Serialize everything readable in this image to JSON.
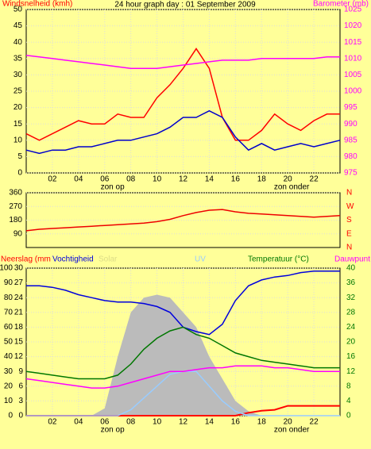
{
  "chart_data": [
    {
      "type": "line",
      "title": "24 hour graph day : 01 September 2009",
      "x": [
        0,
        1,
        2,
        3,
        4,
        5,
        6,
        7,
        8,
        9,
        10,
        11,
        12,
        13,
        14,
        15,
        16,
        17,
        18,
        19,
        20,
        21,
        22,
        23,
        24
      ],
      "xlim": [
        0,
        24
      ],
      "xticks": [
        {
          "value": 2,
          "label": "02"
        },
        {
          "value": 4,
          "label": "04"
        },
        {
          "value": 6,
          "label": "06"
        },
        {
          "value": 8,
          "label": "08"
        },
        {
          "value": 10,
          "label": "10"
        },
        {
          "value": 12,
          "label": "12"
        },
        {
          "value": 14,
          "label": "14"
        },
        {
          "value": 16,
          "label": "16"
        },
        {
          "value": 18,
          "label": "18"
        },
        {
          "value": 20,
          "label": "20"
        },
        {
          "value": 22,
          "label": "22"
        }
      ],
      "annotations": [
        {
          "x": 6.6,
          "text": "zon op"
        },
        {
          "x": 20.3,
          "text": "zon onder"
        }
      ],
      "ylim": [
        0,
        50
      ],
      "yticks": [
        0,
        5,
        10,
        15,
        20,
        25,
        30,
        35,
        40,
        45,
        50
      ],
      "y2lim": [
        975,
        1025
      ],
      "y2ticks": [
        975,
        980,
        985,
        990,
        995,
        1000,
        1005,
        1010,
        1015,
        1020,
        1025
      ],
      "grid": true,
      "series": [
        {
          "name": "Windsnelheid (kmh)",
          "color": "#ff0000",
          "values": [
            12,
            10,
            12,
            14,
            16,
            15,
            15,
            18,
            17,
            17,
            23,
            27,
            32,
            38,
            32,
            17,
            10,
            10,
            13,
            18,
            15,
            13,
            16,
            18,
            18
          ]
        },
        {
          "color": "#0000cc",
          "values": [
            7,
            6,
            7,
            7,
            8,
            8,
            9,
            10,
            10,
            11,
            12,
            14,
            17,
            17,
            19,
            17,
            11,
            7,
            9,
            7,
            8,
            9,
            8,
            9,
            10
          ]
        },
        {
          "name": "Barometer (mb)",
          "color": "#ff00ff",
          "axis": "y2",
          "values": [
            1011,
            1010.5,
            1010,
            1009.5,
            1009,
            1008.5,
            1008,
            1007.5,
            1007,
            1007,
            1007,
            1007.5,
            1008,
            1008.5,
            1009,
            1009.5,
            1009.5,
            1009.5,
            1010,
            1010,
            1010,
            1010,
            1010,
            1010.5,
            1010.5
          ]
        }
      ]
    },
    {
      "type": "line",
      "x": [
        0,
        1,
        2,
        3,
        4,
        5,
        6,
        7,
        8,
        9,
        10,
        11,
        12,
        13,
        14,
        15,
        16,
        17,
        18,
        19,
        20,
        21,
        22,
        23,
        24
      ],
      "xlim": [
        0,
        24
      ],
      "ylim": [
        0,
        360
      ],
      "yticks": [
        90,
        180,
        270,
        360
      ],
      "y2lim": [
        0,
        360
      ],
      "y2ticks": [
        {
          "value": 360,
          "label": "N"
        },
        {
          "value": 270,
          "label": "W"
        },
        {
          "value": 180,
          "label": "S"
        },
        {
          "value": 90,
          "label": "E"
        },
        {
          "value": 0,
          "label": "N"
        }
      ],
      "grid": true,
      "series": [
        {
          "color": "#ee0000",
          "values": [
            110,
            120,
            125,
            130,
            135,
            140,
            145,
            150,
            155,
            160,
            170,
            185,
            210,
            230,
            245,
            250,
            235,
            225,
            220,
            215,
            210,
            205,
            200,
            205,
            210
          ]
        }
      ]
    },
    {
      "type": "line",
      "x": [
        0,
        1,
        2,
        3,
        4,
        5,
        6,
        7,
        8,
        9,
        10,
        11,
        12,
        13,
        14,
        15,
        16,
        17,
        18,
        19,
        20,
        21,
        22,
        23,
        24
      ],
      "xlim": [
        0,
        24
      ],
      "xticks": [
        {
          "value": 2,
          "label": "02"
        },
        {
          "value": 4,
          "label": "04"
        },
        {
          "value": 6,
          "label": "06"
        },
        {
          "value": 8,
          "label": "08"
        },
        {
          "value": 10,
          "label": "10"
        },
        {
          "value": 12,
          "label": "12"
        },
        {
          "value": 14,
          "label": "14"
        },
        {
          "value": 16,
          "label": "16"
        },
        {
          "value": 18,
          "label": "18"
        },
        {
          "value": 20,
          "label": "20"
        },
        {
          "value": 22,
          "label": "22"
        }
      ],
      "annotations": [
        {
          "x": 6.6,
          "text": "zon op"
        },
        {
          "x": 20.3,
          "text": "zon onder"
        }
      ],
      "ylim": [
        0,
        100
      ],
      "yticks": [
        0,
        10,
        20,
        30,
        40,
        50,
        60,
        70,
        80,
        90,
        100
      ],
      "y3lim": [
        0,
        30
      ],
      "y3ticks": [
        0,
        3,
        6,
        9,
        12,
        15,
        18,
        21,
        24,
        27,
        30
      ],
      "y2lim": [
        0,
        40
      ],
      "y2ticks": [
        0,
        4,
        8,
        12,
        16,
        20,
        24,
        28,
        32,
        36,
        40
      ],
      "grid": true,
      "series": [
        {
          "name": "Solar",
          "color": "#bbbbbb",
          "style": "area",
          "values": [
            0,
            0,
            0,
            0,
            0,
            0,
            5,
            40,
            70,
            80,
            82,
            80,
            70,
            60,
            40,
            25,
            10,
            3,
            0,
            0,
            0,
            0,
            0,
            0,
            0
          ]
        },
        {
          "name": "Neerslag (mm",
          "color": "#ff0000",
          "axis": "y3",
          "values": [
            0,
            0,
            0,
            0,
            0,
            0,
            0,
            0,
            0,
            0,
            0,
            0,
            0,
            0,
            0,
            0,
            0,
            0.6,
            1,
            1.2,
            2,
            2,
            2,
            2,
            2
          ]
        },
        {
          "name": "Vochtigheid",
          "color": "#0000dd",
          "values": [
            88,
            88,
            87,
            85,
            82,
            80,
            78,
            77,
            77,
            76,
            74,
            70,
            60,
            57,
            55,
            62,
            78,
            88,
            92,
            94,
            95,
            97,
            98,
            98,
            98
          ]
        },
        {
          "name": "UV",
          "color": "#99ccff",
          "values": [
            0,
            0,
            0,
            0,
            0,
            0,
            0,
            0,
            4,
            12,
            20,
            28,
            30,
            30,
            20,
            10,
            3,
            0,
            0,
            0,
            0,
            0,
            0,
            0,
            0
          ]
        },
        {
          "name": "Temperatuur (°C)",
          "color": "#007700",
          "axis": "y2",
          "values": [
            12,
            11.5,
            11,
            10.5,
            10,
            10,
            10,
            11,
            14,
            18,
            21,
            23,
            24,
            22,
            21,
            19,
            17,
            16,
            15,
            14.5,
            14,
            13.5,
            13,
            13,
            13
          ]
        },
        {
          "name": "Dauwpunt",
          "color": "#ff00ff",
          "axis": "y2",
          "values": [
            10,
            9.5,
            9,
            8.5,
            8,
            7.5,
            7.5,
            8,
            9,
            10,
            11,
            12,
            12,
            12.5,
            13,
            13,
            13.5,
            13.5,
            13.5,
            13,
            13,
            12.5,
            12,
            12,
            12
          ]
        }
      ]
    }
  ]
}
